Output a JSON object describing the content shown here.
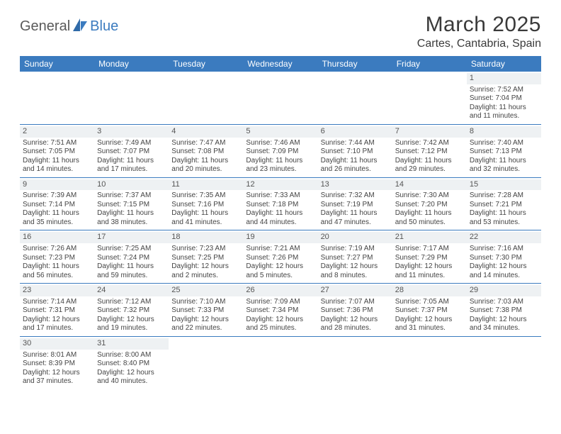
{
  "logo": {
    "text1": "General",
    "text2": "Blue"
  },
  "title": "March 2025",
  "location": "Cartes, Cantabria, Spain",
  "colors": {
    "header_bg": "#3b7bbf",
    "header_text": "#ffffff",
    "row_border": "#3b7bbf",
    "daynum_bg": "#eef1f3",
    "body_text": "#444444",
    "page_bg": "#ffffff",
    "logo_gray": "#5a5a5a",
    "logo_blue": "#3b7bbf"
  },
  "weekdays": [
    "Sunday",
    "Monday",
    "Tuesday",
    "Wednesday",
    "Thursday",
    "Friday",
    "Saturday"
  ],
  "weeks": [
    [
      {
        "empty": true
      },
      {
        "empty": true
      },
      {
        "empty": true
      },
      {
        "empty": true
      },
      {
        "empty": true
      },
      {
        "empty": true
      },
      {
        "n": "1",
        "sunrise": "Sunrise: 7:52 AM",
        "sunset": "Sunset: 7:04 PM",
        "day1": "Daylight: 11 hours",
        "day2": "and 11 minutes."
      }
    ],
    [
      {
        "n": "2",
        "sunrise": "Sunrise: 7:51 AM",
        "sunset": "Sunset: 7:05 PM",
        "day1": "Daylight: 11 hours",
        "day2": "and 14 minutes."
      },
      {
        "n": "3",
        "sunrise": "Sunrise: 7:49 AM",
        "sunset": "Sunset: 7:07 PM",
        "day1": "Daylight: 11 hours",
        "day2": "and 17 minutes."
      },
      {
        "n": "4",
        "sunrise": "Sunrise: 7:47 AM",
        "sunset": "Sunset: 7:08 PM",
        "day1": "Daylight: 11 hours",
        "day2": "and 20 minutes."
      },
      {
        "n": "5",
        "sunrise": "Sunrise: 7:46 AM",
        "sunset": "Sunset: 7:09 PM",
        "day1": "Daylight: 11 hours",
        "day2": "and 23 minutes."
      },
      {
        "n": "6",
        "sunrise": "Sunrise: 7:44 AM",
        "sunset": "Sunset: 7:10 PM",
        "day1": "Daylight: 11 hours",
        "day2": "and 26 minutes."
      },
      {
        "n": "7",
        "sunrise": "Sunrise: 7:42 AM",
        "sunset": "Sunset: 7:12 PM",
        "day1": "Daylight: 11 hours",
        "day2": "and 29 minutes."
      },
      {
        "n": "8",
        "sunrise": "Sunrise: 7:40 AM",
        "sunset": "Sunset: 7:13 PM",
        "day1": "Daylight: 11 hours",
        "day2": "and 32 minutes."
      }
    ],
    [
      {
        "n": "9",
        "sunrise": "Sunrise: 7:39 AM",
        "sunset": "Sunset: 7:14 PM",
        "day1": "Daylight: 11 hours",
        "day2": "and 35 minutes."
      },
      {
        "n": "10",
        "sunrise": "Sunrise: 7:37 AM",
        "sunset": "Sunset: 7:15 PM",
        "day1": "Daylight: 11 hours",
        "day2": "and 38 minutes."
      },
      {
        "n": "11",
        "sunrise": "Sunrise: 7:35 AM",
        "sunset": "Sunset: 7:16 PM",
        "day1": "Daylight: 11 hours",
        "day2": "and 41 minutes."
      },
      {
        "n": "12",
        "sunrise": "Sunrise: 7:33 AM",
        "sunset": "Sunset: 7:18 PM",
        "day1": "Daylight: 11 hours",
        "day2": "and 44 minutes."
      },
      {
        "n": "13",
        "sunrise": "Sunrise: 7:32 AM",
        "sunset": "Sunset: 7:19 PM",
        "day1": "Daylight: 11 hours",
        "day2": "and 47 minutes."
      },
      {
        "n": "14",
        "sunrise": "Sunrise: 7:30 AM",
        "sunset": "Sunset: 7:20 PM",
        "day1": "Daylight: 11 hours",
        "day2": "and 50 minutes."
      },
      {
        "n": "15",
        "sunrise": "Sunrise: 7:28 AM",
        "sunset": "Sunset: 7:21 PM",
        "day1": "Daylight: 11 hours",
        "day2": "and 53 minutes."
      }
    ],
    [
      {
        "n": "16",
        "sunrise": "Sunrise: 7:26 AM",
        "sunset": "Sunset: 7:23 PM",
        "day1": "Daylight: 11 hours",
        "day2": "and 56 minutes."
      },
      {
        "n": "17",
        "sunrise": "Sunrise: 7:25 AM",
        "sunset": "Sunset: 7:24 PM",
        "day1": "Daylight: 11 hours",
        "day2": "and 59 minutes."
      },
      {
        "n": "18",
        "sunrise": "Sunrise: 7:23 AM",
        "sunset": "Sunset: 7:25 PM",
        "day1": "Daylight: 12 hours",
        "day2": "and 2 minutes."
      },
      {
        "n": "19",
        "sunrise": "Sunrise: 7:21 AM",
        "sunset": "Sunset: 7:26 PM",
        "day1": "Daylight: 12 hours",
        "day2": "and 5 minutes."
      },
      {
        "n": "20",
        "sunrise": "Sunrise: 7:19 AM",
        "sunset": "Sunset: 7:27 PM",
        "day1": "Daylight: 12 hours",
        "day2": "and 8 minutes."
      },
      {
        "n": "21",
        "sunrise": "Sunrise: 7:17 AM",
        "sunset": "Sunset: 7:29 PM",
        "day1": "Daylight: 12 hours",
        "day2": "and 11 minutes."
      },
      {
        "n": "22",
        "sunrise": "Sunrise: 7:16 AM",
        "sunset": "Sunset: 7:30 PM",
        "day1": "Daylight: 12 hours",
        "day2": "and 14 minutes."
      }
    ],
    [
      {
        "n": "23",
        "sunrise": "Sunrise: 7:14 AM",
        "sunset": "Sunset: 7:31 PM",
        "day1": "Daylight: 12 hours",
        "day2": "and 17 minutes."
      },
      {
        "n": "24",
        "sunrise": "Sunrise: 7:12 AM",
        "sunset": "Sunset: 7:32 PM",
        "day1": "Daylight: 12 hours",
        "day2": "and 19 minutes."
      },
      {
        "n": "25",
        "sunrise": "Sunrise: 7:10 AM",
        "sunset": "Sunset: 7:33 PM",
        "day1": "Daylight: 12 hours",
        "day2": "and 22 minutes."
      },
      {
        "n": "26",
        "sunrise": "Sunrise: 7:09 AM",
        "sunset": "Sunset: 7:34 PM",
        "day1": "Daylight: 12 hours",
        "day2": "and 25 minutes."
      },
      {
        "n": "27",
        "sunrise": "Sunrise: 7:07 AM",
        "sunset": "Sunset: 7:36 PM",
        "day1": "Daylight: 12 hours",
        "day2": "and 28 minutes."
      },
      {
        "n": "28",
        "sunrise": "Sunrise: 7:05 AM",
        "sunset": "Sunset: 7:37 PM",
        "day1": "Daylight: 12 hours",
        "day2": "and 31 minutes."
      },
      {
        "n": "29",
        "sunrise": "Sunrise: 7:03 AM",
        "sunset": "Sunset: 7:38 PM",
        "day1": "Daylight: 12 hours",
        "day2": "and 34 minutes."
      }
    ],
    [
      {
        "n": "30",
        "sunrise": "Sunrise: 8:01 AM",
        "sunset": "Sunset: 8:39 PM",
        "day1": "Daylight: 12 hours",
        "day2": "and 37 minutes."
      },
      {
        "n": "31",
        "sunrise": "Sunrise: 8:00 AM",
        "sunset": "Sunset: 8:40 PM",
        "day1": "Daylight: 12 hours",
        "day2": "and 40 minutes."
      },
      {
        "empty": true
      },
      {
        "empty": true
      },
      {
        "empty": true
      },
      {
        "empty": true
      },
      {
        "empty": true
      }
    ]
  ]
}
